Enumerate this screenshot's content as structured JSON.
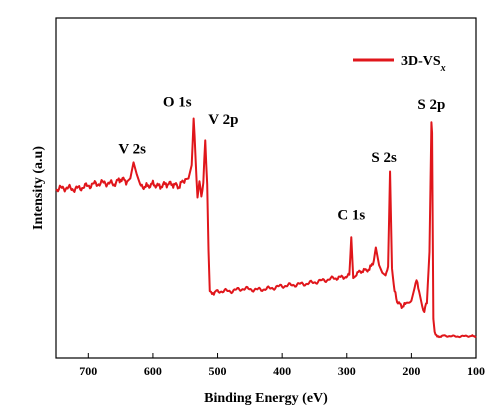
{
  "chart_data": {
    "type": "line",
    "title": "",
    "xlabel": "Binding Energy (eV)",
    "ylabel": "Intensity (a.u)",
    "xlim": [
      750,
      100
    ],
    "ylim": [
      0,
      100
    ],
    "x_reversed": true,
    "y_ticks_shown": false,
    "xticks": [
      700,
      600,
      500,
      400,
      300,
      200,
      100
    ],
    "legend": {
      "position": "top-right"
    },
    "series": [
      {
        "name": "3D-VS",
        "name_subscript": "x",
        "color": "#e0161b",
        "x": [
          750,
          735,
          720,
          705,
          690,
          675,
          660,
          650,
          640,
          635,
          630,
          625,
          620,
          610,
          600,
          590,
          580,
          570,
          560,
          550,
          545,
          540,
          537,
          534,
          531,
          528,
          525,
          522,
          519,
          516,
          514,
          512,
          510,
          500,
          480,
          460,
          440,
          420,
          400,
          380,
          360,
          340,
          320,
          305,
          296,
          293,
          290,
          285,
          275,
          265,
          258,
          255,
          250,
          245,
          240,
          236,
          233,
          230,
          226,
          222,
          215,
          208,
          200,
          195,
          192,
          188,
          183,
          180,
          176,
          172,
          169,
          168,
          166,
          164,
          160,
          150,
          130,
          110,
          100
        ],
        "y": [
          58,
          58.5,
          58,
          59,
          60,
          60.5,
          60,
          62,
          61,
          62,
          68,
          63,
          59,
          59,
          60,
          59,
          60,
          60,
          59,
          62,
          62,
          67,
          85,
          70,
          55,
          62,
          54,
          60,
          78,
          60,
          35,
          18,
          17,
          18,
          18,
          19,
          18.5,
          19,
          20,
          20.5,
          21,
          22,
          23,
          23.5,
          24,
          39,
          24,
          25,
          26,
          26.5,
          30,
          35,
          28,
          25,
          24,
          28,
          64,
          27,
          18,
          14,
          12,
          13,
          15,
          20,
          22,
          18,
          12,
          10,
          14,
          33,
          84,
          80,
          8,
          2,
          0,
          0.5,
          0.2,
          0.4,
          0.3
        ]
      }
    ],
    "annotations": [
      {
        "text": "V 2s",
        "x": 632,
        "y": 68
      },
      {
        "text": "O 1s",
        "x": 537,
        "y": 85
      },
      {
        "text": "V 2p",
        "x": 519,
        "y": 78
      },
      {
        "text": "C 1s",
        "x": 293,
        "y": 39
      },
      {
        "text": "S 2s",
        "x": 233,
        "y": 64
      },
      {
        "text": "S 2p",
        "x": 169,
        "y": 84
      }
    ]
  }
}
